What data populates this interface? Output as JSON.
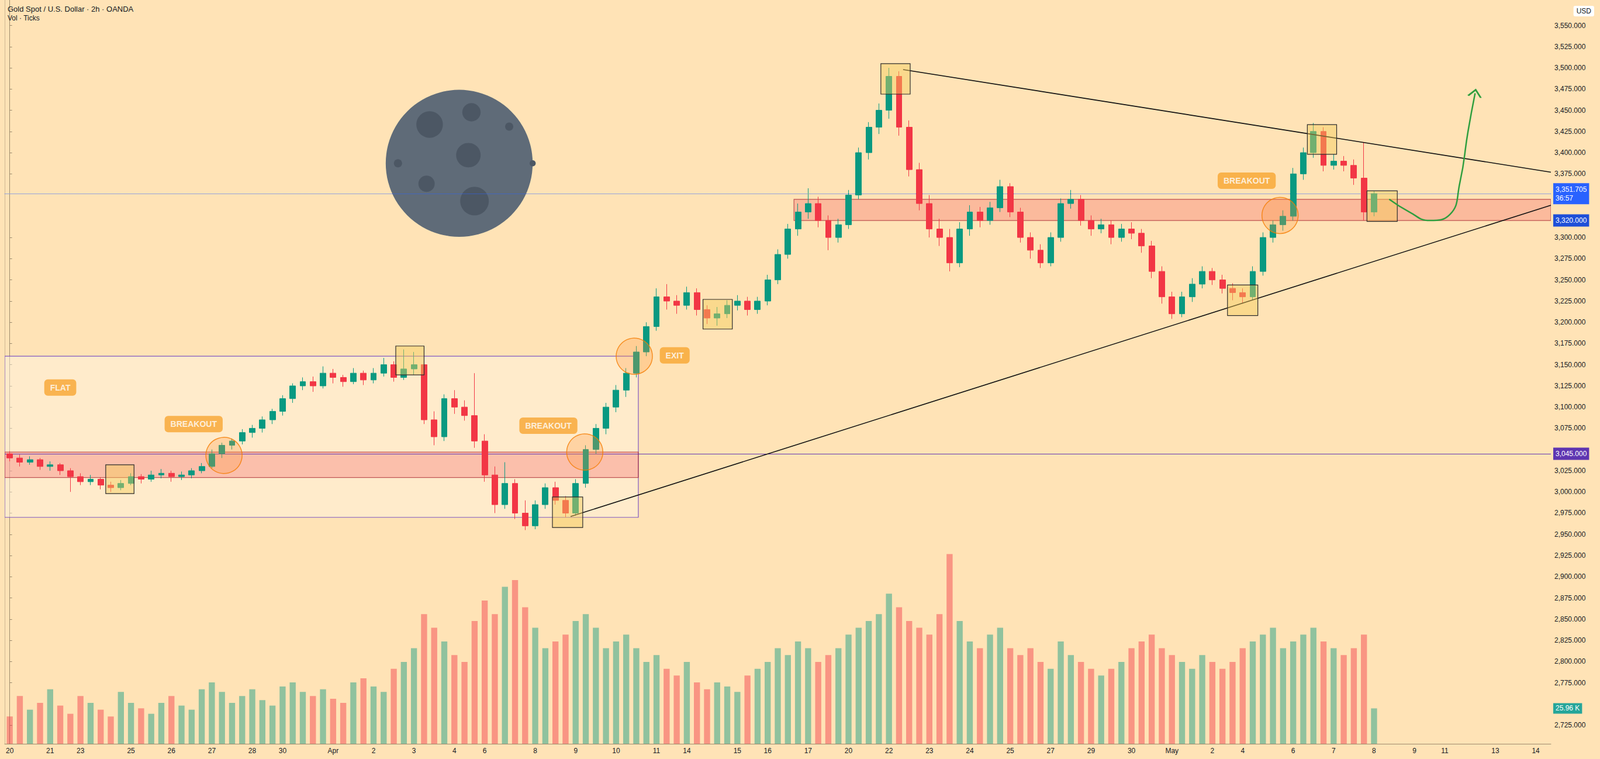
{
  "chart_data": {
    "type": "candlestick",
    "title": "Gold Spot / U.S. Dollar · 2h · OANDA",
    "subtitle": "Vol · Ticks",
    "currency": "USD",
    "grid": false,
    "categories": [
      "20",
      null,
      null,
      null,
      "21",
      null,
      null,
      "23",
      null,
      null,
      null,
      null,
      "25",
      null,
      null,
      null,
      "26",
      null,
      null,
      null,
      "27",
      null,
      null,
      null,
      "28",
      null,
      null,
      "30",
      null,
      null,
      null,
      null,
      "Apr",
      null,
      null,
      null,
      "2",
      null,
      null,
      null,
      "3",
      null,
      null,
      null,
      "4",
      null,
      null,
      "6",
      null,
      null,
      null,
      null,
      "8",
      null,
      null,
      null,
      "9",
      null,
      null,
      null,
      "10",
      null,
      null,
      null,
      "11",
      null,
      null,
      "14",
      null,
      null,
      null,
      null,
      "15",
      null,
      null,
      "16",
      null,
      null,
      null,
      "17",
      null,
      null,
      null,
      "20",
      null,
      null,
      null,
      "22",
      null,
      null,
      null,
      "23",
      null,
      null,
      null,
      "24",
      null,
      null,
      null,
      "25",
      null,
      null,
      null,
      "27",
      null,
      null,
      null,
      "29",
      null,
      null,
      null,
      "30",
      null,
      null,
      null,
      "May",
      null,
      null,
      null,
      "2",
      null,
      null,
      "4",
      null,
      null,
      null,
      null,
      "6",
      null,
      null,
      null,
      "7",
      null,
      null,
      null,
      "8",
      null,
      null,
      null,
      "9",
      null,
      null,
      "11",
      null,
      null,
      null,
      null,
      "13",
      null,
      null,
      null,
      "14",
      null
    ],
    "open": [
      3045,
      3040,
      3035,
      3038,
      3030,
      3032,
      3025,
      3018,
      3012,
      3015,
      3008,
      3005,
      3010,
      3018,
      3015,
      3020,
      3022,
      3018,
      3020,
      3025,
      3030,
      3045,
      3055,
      3060,
      3070,
      3075,
      3085,
      3095,
      3110,
      3125,
      3130,
      3125,
      3140,
      3135,
      3130,
      3140,
      3132,
      3140,
      3150,
      3135,
      3145,
      3150,
      3085,
      3065,
      3110,
      3100,
      3090,
      3060,
      3020,
      2985,
      3010,
      2975,
      2960,
      2985,
      3005,
      2990,
      2975,
      3010,
      3050,
      3075,
      3100,
      3120,
      3140,
      3165,
      3195,
      3230,
      3225,
      3220,
      3235,
      3215,
      3205,
      3210,
      3220,
      3225,
      3215,
      3225,
      3250,
      3280,
      3310,
      3330,
      3340,
      3320,
      3300,
      3315,
      3350,
      3400,
      3430,
      3450,
      3490,
      3430,
      3380,
      3340,
      3310,
      3300,
      3270,
      3310,
      3330,
      3320,
      3335,
      3360,
      3330,
      3300,
      3285,
      3270,
      3300,
      3340,
      3345,
      3320,
      3310,
      3315,
      3300,
      3310,
      3305,
      3290,
      3260,
      3230,
      3210,
      3230,
      3245,
      3260,
      3250,
      3240,
      3235,
      3230,
      3260,
      3300,
      3315,
      3325,
      3375,
      3400,
      3425,
      3385,
      3390,
      3385,
      3370,
      3330,
      null,
      null,
      null,
      null,
      null,
      null,
      null,
      null,
      null,
      null,
      null,
      null,
      null,
      null,
      null,
      null,
      null
    ],
    "high": [
      3048,
      3044,
      3042,
      3040,
      3036,
      3034,
      3028,
      3022,
      3020,
      3017,
      3012,
      3014,
      3022,
      3021,
      3025,
      3027,
      3025,
      3024,
      3028,
      3034,
      3050,
      3058,
      3063,
      3074,
      3079,
      3089,
      3098,
      3114,
      3128,
      3135,
      3136,
      3148,
      3145,
      3138,
      3146,
      3143,
      3146,
      3158,
      3154,
      3168,
      3165,
      3154,
      3095,
      3115,
      3120,
      3108,
      3140,
      3068,
      3030,
      3035,
      3015,
      2990,
      2990,
      3010,
      3012,
      2995,
      3015,
      3055,
      3080,
      3105,
      3126,
      3146,
      3172,
      3200,
      3240,
      3245,
      3232,
      3242,
      3240,
      3220,
      3218,
      3226,
      3232,
      3230,
      3230,
      3256,
      3286,
      3316,
      3340,
      3358,
      3348,
      3326,
      3322,
      3356,
      3406,
      3436,
      3458,
      3500,
      3496,
      3438,
      3388,
      3350,
      3322,
      3310,
      3318,
      3338,
      3336,
      3342,
      3368,
      3364,
      3335,
      3306,
      3292,
      3306,
      3346,
      3356,
      3350,
      3326,
      3322,
      3320,
      3316,
      3318,
      3310,
      3296,
      3266,
      3236,
      3236,
      3252,
      3266,
      3264,
      3256,
      3246,
      3240,
      3266,
      3306,
      3320,
      3332,
      3382,
      3406,
      3435,
      3430,
      3398,
      3396,
      3392,
      3412,
      3355,
      null,
      null,
      null,
      null,
      null,
      null,
      null,
      null,
      null,
      null,
      null,
      null,
      null,
      null,
      null,
      null,
      null
    ],
    "low": [
      3036,
      3030,
      3032,
      3026,
      3025,
      3020,
      3000,
      3008,
      3008,
      3003,
      3000,
      3002,
      3008,
      3010,
      3012,
      3016,
      3012,
      3014,
      3016,
      3022,
      3028,
      3040,
      3050,
      3056,
      3064,
      3070,
      3080,
      3090,
      3105,
      3120,
      3118,
      3122,
      3128,
      3124,
      3127,
      3126,
      3128,
      3136,
      3130,
      3132,
      3138,
      3080,
      3055,
      3060,
      3092,
      3084,
      3052,
      3012,
      2975,
      2980,
      2968,
      2955,
      2956,
      2980,
      2985,
      2970,
      2972,
      3005,
      3045,
      3068,
      3094,
      3112,
      3135,
      3160,
      3190,
      3215,
      3210,
      3215,
      3208,
      3198,
      3196,
      3205,
      3214,
      3208,
      3210,
      3220,
      3245,
      3275,
      3302,
      3322,
      3312,
      3285,
      3294,
      3310,
      3345,
      3392,
      3422,
      3440,
      3420,
      3372,
      3332,
      3300,
      3290,
      3260,
      3265,
      3302,
      3312,
      3315,
      3330,
      3324,
      3294,
      3275,
      3264,
      3266,
      3295,
      3334,
      3314,
      3302,
      3305,
      3292,
      3295,
      3298,
      3282,
      3252,
      3222,
      3204,
      3206,
      3224,
      3240,
      3244,
      3234,
      3226,
      3222,
      3226,
      3255,
      3294,
      3308,
      3320,
      3368,
      3394,
      3378,
      3380,
      3378,
      3362,
      3320,
      3325,
      null,
      null,
      null,
      null,
      null,
      null,
      null,
      null,
      null,
      null,
      null,
      null,
      null,
      null,
      null,
      null,
      null
    ],
    "close": [
      3040,
      3035,
      3038,
      3030,
      3032,
      3025,
      3018,
      3012,
      3015,
      3008,
      3005,
      3010,
      3018,
      3015,
      3020,
      3022,
      3018,
      3020,
      3025,
      3030,
      3045,
      3055,
      3060,
      3070,
      3075,
      3085,
      3095,
      3110,
      3125,
      3130,
      3125,
      3140,
      3135,
      3130,
      3140,
      3132,
      3140,
      3150,
      3135,
      3145,
      3150,
      3085,
      3065,
      3110,
      3100,
      3090,
      3060,
      3020,
      2985,
      3010,
      2975,
      2960,
      2985,
      3005,
      2990,
      2975,
      3010,
      3050,
      3075,
      3100,
      3120,
      3140,
      3165,
      3195,
      3230,
      3225,
      3220,
      3235,
      3215,
      3205,
      3210,
      3220,
      3225,
      3215,
      3225,
      3250,
      3280,
      3310,
      3330,
      3340,
      3320,
      3300,
      3315,
      3350,
      3400,
      3430,
      3450,
      3490,
      3430,
      3380,
      3340,
      3310,
      3300,
      3270,
      3310,
      3330,
      3320,
      3335,
      3360,
      3330,
      3300,
      3285,
      3270,
      3300,
      3340,
      3345,
      3320,
      3310,
      3315,
      3300,
      3310,
      3305,
      3290,
      3260,
      3230,
      3210,
      3230,
      3245,
      3260,
      3250,
      3240,
      3235,
      3230,
      3260,
      3300,
      3315,
      3325,
      3375,
      3400,
      3425,
      3385,
      3390,
      3385,
      3370,
      3330,
      3351.705,
      null,
      null,
      null,
      null,
      null,
      null,
      null,
      null,
      null,
      null,
      null,
      null,
      null,
      null,
      null,
      null,
      null
    ],
    "volume": [
      20,
      35,
      25,
      30,
      40,
      28,
      22,
      35,
      30,
      25,
      20,
      38,
      30,
      26,
      22,
      30,
      35,
      28,
      25,
      40,
      45,
      38,
      30,
      35,
      40,
      32,
      28,
      42,
      45,
      38,
      35,
      40,
      33,
      30,
      45,
      48,
      42,
      38,
      55,
      60,
      70,
      95,
      85,
      75,
      65,
      60,
      90,
      105,
      95,
      115,
      120,
      100,
      85,
      70,
      75,
      80,
      90,
      95,
      85,
      70,
      75,
      80,
      70,
      60,
      65,
      55,
      50,
      60,
      45,
      40,
      45,
      42,
      38,
      50,
      55,
      60,
      70,
      65,
      75,
      70,
      60,
      65,
      70,
      80,
      85,
      90,
      95,
      110,
      100,
      90,
      85,
      80,
      95,
      139,
      90,
      75,
      70,
      80,
      85,
      70,
      65,
      70,
      60,
      55,
      75,
      65,
      60,
      55,
      50,
      55,
      60,
      70,
      75,
      80,
      70,
      65,
      60,
      55,
      65,
      60,
      55,
      60,
      70,
      75,
      80,
      85,
      70,
      75,
      80,
      85,
      75,
      70,
      65,
      70,
      80,
      25.96,
      null,
      null,
      null,
      null,
      null,
      null,
      null,
      null,
      null,
      null,
      null,
      null,
      null,
      null,
      null,
      null,
      null
    ],
    "ylim": [
      2703,
      3580
    ],
    "yticks": [
      {
        "value": 2725,
        "label": "2,725.000"
      },
      {
        "value": 2775,
        "label": "2,775.000"
      },
      {
        "value": 2800,
        "label": "2,800.000"
      },
      {
        "value": 2825,
        "label": "2,825.000"
      },
      {
        "value": 2850,
        "label": "2,850.000"
      },
      {
        "value": 2875,
        "label": "2,875.000"
      },
      {
        "value": 2900,
        "label": "2,900.000"
      },
      {
        "value": 2925,
        "label": "2,925.000"
      },
      {
        "value": 2950,
        "label": "2,950.000"
      },
      {
        "value": 2975,
        "label": "2,975.000"
      },
      {
        "value": 3000,
        "label": "3,000.000"
      },
      {
        "value": 3025,
        "label": "3,025.000"
      },
      {
        "value": 3075,
        "label": "3,075.000"
      },
      {
        "value": 3100,
        "label": "3,100.000"
      },
      {
        "value": 3125,
        "label": "3,125.000"
      },
      {
        "value": 3150,
        "label": "3,150.000"
      },
      {
        "value": 3175,
        "label": "3,175.000"
      },
      {
        "value": 3200,
        "label": "3,200.000"
      },
      {
        "value": 3225,
        "label": "3,225.000"
      },
      {
        "value": 3250,
        "label": "3,250.000"
      },
      {
        "value": 3275,
        "label": "3,275.000"
      },
      {
        "value": 3300,
        "label": "3,300.000"
      },
      {
        "value": 3375,
        "label": "3,375.000"
      },
      {
        "value": 3400,
        "label": "3,400.000"
      },
      {
        "value": 3425,
        "label": "3,425.000"
      },
      {
        "value": 3450,
        "label": "3,450.000"
      },
      {
        "value": 3475,
        "label": "3,475.000"
      },
      {
        "value": 3500,
        "label": "3,500.000"
      },
      {
        "value": 3525,
        "label": "3,525.000"
      },
      {
        "value": 3550,
        "label": "3,550.000"
      }
    ],
    "y2lim": [
      0,
      545
    ],
    "price_labels": [
      {
        "value": 3351.705,
        "label": "3,351.705",
        "countdown": "36:57",
        "color": "#2962ff",
        "line_style": "dotted"
      },
      {
        "value": 3320,
        "label": "3,320.000",
        "color": "#1e4fd8",
        "line_style": "none"
      },
      {
        "value": 3045,
        "label": "3,045.000",
        "color": "#5e35b1",
        "line_style": "solid"
      }
    ],
    "volume_label": {
      "value": 25.96,
      "label": "25.96 K",
      "color": "#26a69a"
    },
    "boxes": [
      {
        "x": [
          -0.5,
          62.2
        ],
        "y": [
          2970,
          3160
        ]
      }
    ],
    "zones": [
      {
        "x": [
          -0.5,
          62.2
        ],
        "y": [
          3017,
          3047
        ]
      },
      {
        "x": [
          77.6,
          152.5
        ],
        "y": [
          3320,
          3345
        ]
      }
    ],
    "squares": [
      {
        "x": [
          9.5,
          12.3
        ],
        "y": [
          2998,
          3032
        ]
      },
      {
        "x": [
          38.2,
          41.0
        ],
        "y": [
          3138,
          3172
        ]
      },
      {
        "x": [
          53.7,
          56.7
        ],
        "y": [
          2958,
          2994
        ]
      },
      {
        "x": [
          68.6,
          71.5
        ],
        "y": [
          3192,
          3227
        ]
      },
      {
        "x": [
          86.2,
          89.1
        ],
        "y": [
          3469,
          3505
        ]
      },
      {
        "x": [
          120.5,
          123.5
        ],
        "y": [
          3208,
          3244
        ]
      },
      {
        "x": [
          128.4,
          131.3
        ],
        "y": [
          3398,
          3433
        ]
      },
      {
        "x": [
          134.3,
          137.3
        ],
        "y": [
          3319,
          3355
        ]
      }
    ],
    "circles": [
      {
        "x": 21.2,
        "y": 3043
      },
      {
        "x": 56.9,
        "y": 3047
      },
      {
        "x": 61.8,
        "y": 3160
      },
      {
        "x": 125.7,
        "y": 3326
      }
    ],
    "notes": [
      {
        "text": "FLAT",
        "x": 5,
        "y": 3123
      },
      {
        "text": "BREAKOUT",
        "x": 18.2,
        "y": 3080
      },
      {
        "text": "BREAKOUT",
        "x": 53.3,
        "y": 3078
      },
      {
        "text": "EXIT",
        "x": 65.8,
        "y": 3161
      },
      {
        "text": "BREAKOUT",
        "x": 122.4,
        "y": 3367
      }
    ],
    "trendlines": [
      [
        [
          88.4,
          3498
        ],
        [
          152.5,
          3377
        ]
      ],
      [
        [
          55.5,
          2971
        ],
        [
          152.5,
          3338
        ]
      ]
    ],
    "forecast": [
      [
        136.5,
        3345
      ],
      [
        138.5,
        3330
      ],
      [
        140.5,
        3320
      ],
      [
        142.5,
        3327
      ],
      [
        143.5,
        3365
      ],
      [
        144.3,
        3425
      ],
      [
        145,
        3470
      ]
    ]
  }
}
